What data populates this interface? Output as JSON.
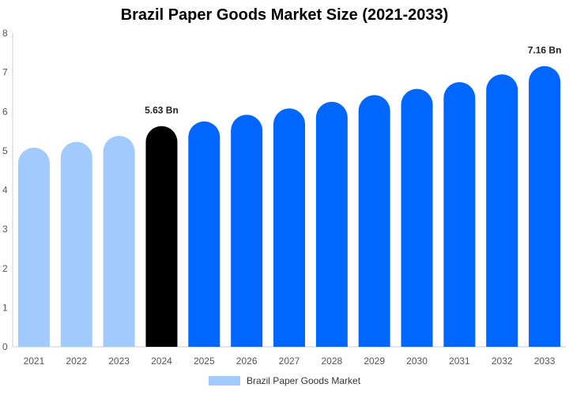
{
  "chart_data": {
    "type": "bar",
    "title": "Brazil Paper Goods Market Size (2021-2033)",
    "categories": [
      "2021",
      "2022",
      "2023",
      "2024",
      "2025",
      "2026",
      "2027",
      "2028",
      "2029",
      "2030",
      "2031",
      "2032",
      "2033"
    ],
    "series": [
      {
        "name": "Brazil Paper Goods Market",
        "values": [
          5.08,
          5.23,
          5.38,
          5.63,
          5.75,
          5.92,
          6.08,
          6.25,
          6.42,
          6.58,
          6.75,
          6.95,
          7.16
        ]
      }
    ],
    "bar_colors": [
      "#a0cbfc",
      "#a0cbfc",
      "#a0cbfc",
      "#000000",
      "#0066ff",
      "#0066ff",
      "#0066ff",
      "#0066ff",
      "#0066ff",
      "#0066ff",
      "#0066ff",
      "#0066ff",
      "#0066ff"
    ],
    "legend_color": "#a0cbfc",
    "data_labels": [
      {
        "category": "2024",
        "text": "5.63 Bn"
      },
      {
        "category": "2033",
        "text": "7.16 Bn"
      }
    ],
    "ylim": [
      0,
      8
    ],
    "yticks": [
      0,
      1,
      2,
      3,
      4,
      5,
      6,
      7,
      8
    ],
    "grid": false,
    "legend_position": "bottom"
  }
}
